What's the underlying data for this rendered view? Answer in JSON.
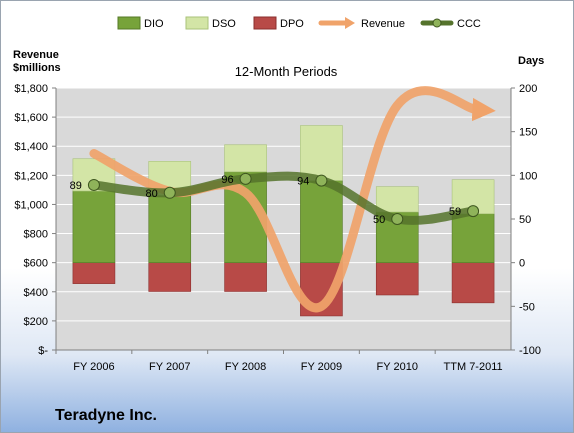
{
  "company_name": "Teradyne Inc.",
  "chart_data": {
    "type": "bar",
    "title": "12-Month Periods",
    "categories": [
      "FY 2006",
      "FY 2007",
      "FY 2008",
      "FY 2009",
      "FY 2010",
      "TTM 7-2011"
    ],
    "left_axis": {
      "title_line1": "Revenue",
      "title_line2": "$millions",
      "range": [
        0,
        1800
      ],
      "tick_values": [
        0,
        200,
        400,
        600,
        800,
        1000,
        1200,
        1400,
        1600,
        1800
      ],
      "tick_labels": [
        "$-",
        "$200",
        "$400",
        "$600",
        "$800",
        "$1,000",
        "$1,200",
        "$1,400",
        "$1,600",
        "$1,800"
      ]
    },
    "right_axis": {
      "title": "Days",
      "range": [
        -100,
        200
      ],
      "tick_values": [
        -100,
        -50,
        0,
        50,
        100,
        150,
        200
      ],
      "tick_labels": [
        "-100",
        "-50",
        "0",
        "50",
        "100",
        "150",
        "200"
      ]
    },
    "grid": true,
    "legend_position": "top",
    "series": [
      {
        "name": "DIO",
        "kind": "stacked-bar",
        "axis": "right",
        "color": "#77a33a",
        "values": [
          82,
          77,
          104,
          94,
          58,
          56
        ]
      },
      {
        "name": "DSO",
        "kind": "stacked-bar",
        "axis": "right",
        "color": "#d3e5a6",
        "values": [
          37,
          39,
          31,
          63,
          29,
          39
        ]
      },
      {
        "name": "DPO",
        "kind": "negative-bar",
        "axis": "right",
        "color": "#b84a47",
        "values": [
          -24,
          -33,
          -33,
          -61,
          -37,
          -46
        ]
      },
      {
        "name": "Revenue",
        "kind": "smooth-line",
        "axis": "left",
        "color": "#f0a36a",
        "values": [
          1350,
          1090,
          1080,
          300,
          1680,
          1650
        ]
      },
      {
        "name": "CCC",
        "kind": "smooth-line",
        "axis": "right",
        "color": "#55732c",
        "values": [
          89,
          80,
          96,
          94,
          50,
          59
        ]
      }
    ],
    "data_labels": [
      "89",
      "80",
      "96",
      "94",
      "50",
      "59"
    ]
  },
  "colors": {
    "dio": "#77a33a",
    "dso": "#d3e5a6",
    "dpo": "#b84a47",
    "revenue": "#f0a36a",
    "ccc": "#55732c",
    "plot_bg": "#d9d9d9",
    "grid": "#ffffff"
  }
}
